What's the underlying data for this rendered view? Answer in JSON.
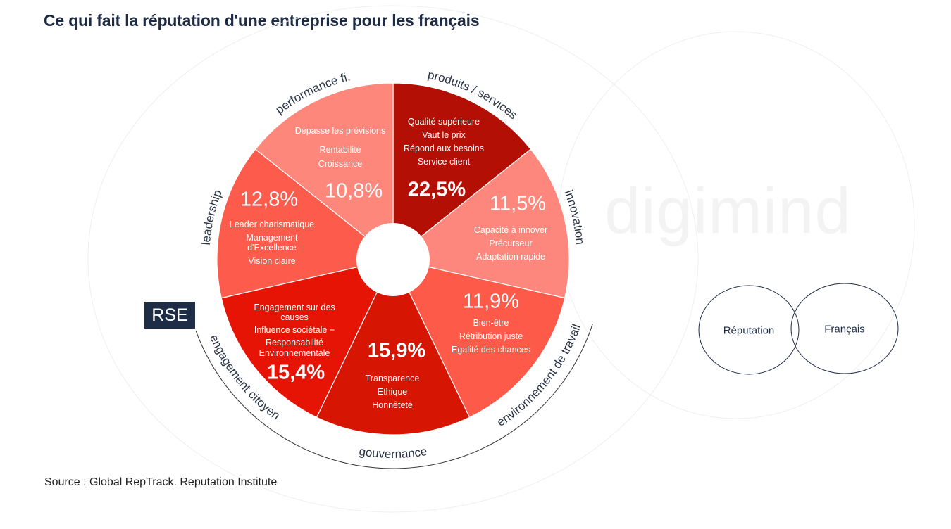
{
  "title": "Ce qui fait la réputation d'une entreprise pour les français",
  "source": "Source : Global RepTrack. Reputation Institute",
  "rse_label": "RSE",
  "watermark": "digimind",
  "venn": {
    "left": "Réputation",
    "right": "Français"
  },
  "chart_data": {
    "type": "pie",
    "title": "Ce qui fait la réputation d'une entreprise pour les français",
    "note": "equal-angle wheel with center hole; percentages printed as labels",
    "categories": [
      "produits / services",
      "innovation",
      "environnement de travail",
      "gouvernance",
      "engagement citoyen",
      "leadership",
      "performance fi."
    ],
    "values": [
      22.5,
      11.5,
      11.9,
      15.9,
      15.4,
      12.8,
      10.8
    ],
    "segments": [
      {
        "label": "produits / services",
        "value_label": "22,5%",
        "bold": true,
        "color": "#b30f04",
        "lines": [
          "Qualité supérieure",
          "Vaut le prix",
          "Répond aux besoins",
          "Service client"
        ]
      },
      {
        "label": "innovation",
        "value_label": "11,5%",
        "bold": false,
        "color": "#fd877c",
        "lines": [
          "Capacité à innover",
          "Précurseur",
          "Adaptation rapide"
        ]
      },
      {
        "label": "environnement de travail",
        "value_label": "11,9%",
        "bold": false,
        "color": "#fd5a4a",
        "lines": [
          "Bien-être",
          "Rétribution juste",
          "Egalité des chances"
        ]
      },
      {
        "label": "gouvernance",
        "value_label": "15,9%",
        "bold": true,
        "color": "#d61502",
        "lines": [
          "Transparence",
          "Ethique",
          "Honnêteté"
        ]
      },
      {
        "label": "engagement citoyen",
        "value_label": "15,4%",
        "bold": true,
        "color": "#e61405",
        "lines": [
          "Engagement sur des",
          "causes",
          "Influence sociétale +",
          "Responsabilité",
          "Environnementale"
        ]
      },
      {
        "label": "leadership",
        "value_label": "12,8%",
        "bold": false,
        "color": "#fd5b4b",
        "lines": [
          "Leader charismatique",
          "Management",
          "d'Excellence",
          "Vision claire"
        ]
      },
      {
        "label": "performance fi.",
        "value_label": "10,8%",
        "bold": false,
        "color": "#fe877c",
        "lines": [
          "Dépasse les prévisions",
          "Rentabilité",
          "Croissance"
        ]
      }
    ],
    "bracket_group": "RSE"
  }
}
